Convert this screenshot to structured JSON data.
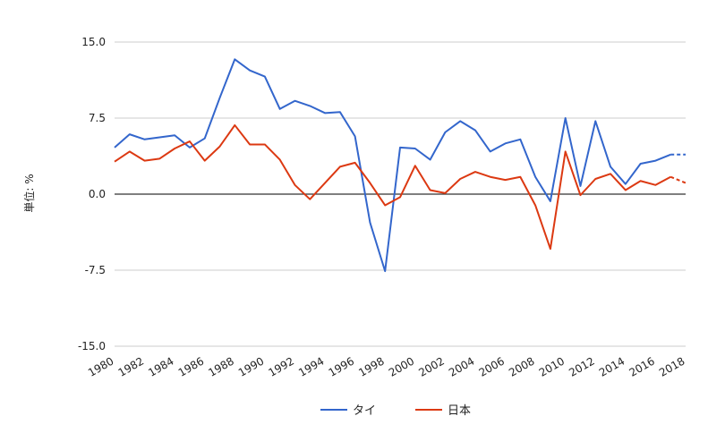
{
  "chart_data": {
    "type": "line",
    "ylabel": "単位: %",
    "ylim": [
      -15,
      15
    ],
    "yticks": [
      "15.0",
      "7.5",
      "0.0",
      "-7.5",
      "-15.0"
    ],
    "yticks_values": [
      15,
      7.5,
      0,
      -7.5,
      -15
    ],
    "x": [
      1980,
      1981,
      1982,
      1983,
      1984,
      1985,
      1986,
      1987,
      1988,
      1989,
      1990,
      1991,
      1992,
      1993,
      1994,
      1995,
      1996,
      1997,
      1998,
      1999,
      2000,
      2001,
      2002,
      2003,
      2004,
      2005,
      2006,
      2007,
      2008,
      2009,
      2010,
      2011,
      2012,
      2013,
      2014,
      2015,
      2016,
      2017,
      2018
    ],
    "xticks": [
      "1980",
      "1982",
      "1984",
      "1986",
      "1988",
      "1990",
      "1992",
      "1994",
      "1996",
      "1998",
      "2000",
      "2002",
      "2004",
      "2006",
      "2008",
      "2010",
      "2012",
      "2014",
      "2016",
      "2018"
    ],
    "xlim": [
      1980,
      2018
    ],
    "grid": true,
    "legend_position": "bottom",
    "series": [
      {
        "name": "タイ",
        "color": "#3366cc",
        "values": [
          4.6,
          5.9,
          5.4,
          5.6,
          5.8,
          4.6,
          5.5,
          9.5,
          13.3,
          12.2,
          11.6,
          8.4,
          9.2,
          8.7,
          8.0,
          8.1,
          5.7,
          -2.8,
          -7.6,
          4.6,
          4.5,
          3.4,
          6.1,
          7.2,
          6.3,
          4.2,
          5.0,
          5.4,
          1.7,
          -0.7,
          7.5,
          0.8,
          7.2,
          2.7,
          1.0,
          3.0,
          3.3,
          3.9,
          3.9
        ],
        "projected_from": 2017
      },
      {
        "name": "日本",
        "color": "#dc3912",
        "values": [
          3.2,
          4.2,
          3.3,
          3.5,
          4.5,
          5.2,
          3.3,
          4.7,
          6.8,
          4.9,
          4.9,
          3.4,
          0.9,
          -0.5,
          1.1,
          2.7,
          3.1,
          1.1,
          -1.1,
          -0.3,
          2.8,
          0.4,
          0.1,
          1.5,
          2.2,
          1.7,
          1.4,
          1.7,
          -1.1,
          -5.4,
          4.2,
          -0.1,
          1.5,
          2.0,
          0.4,
          1.3,
          0.9,
          1.7,
          1.1
        ],
        "projected_from": 2017
      }
    ]
  }
}
